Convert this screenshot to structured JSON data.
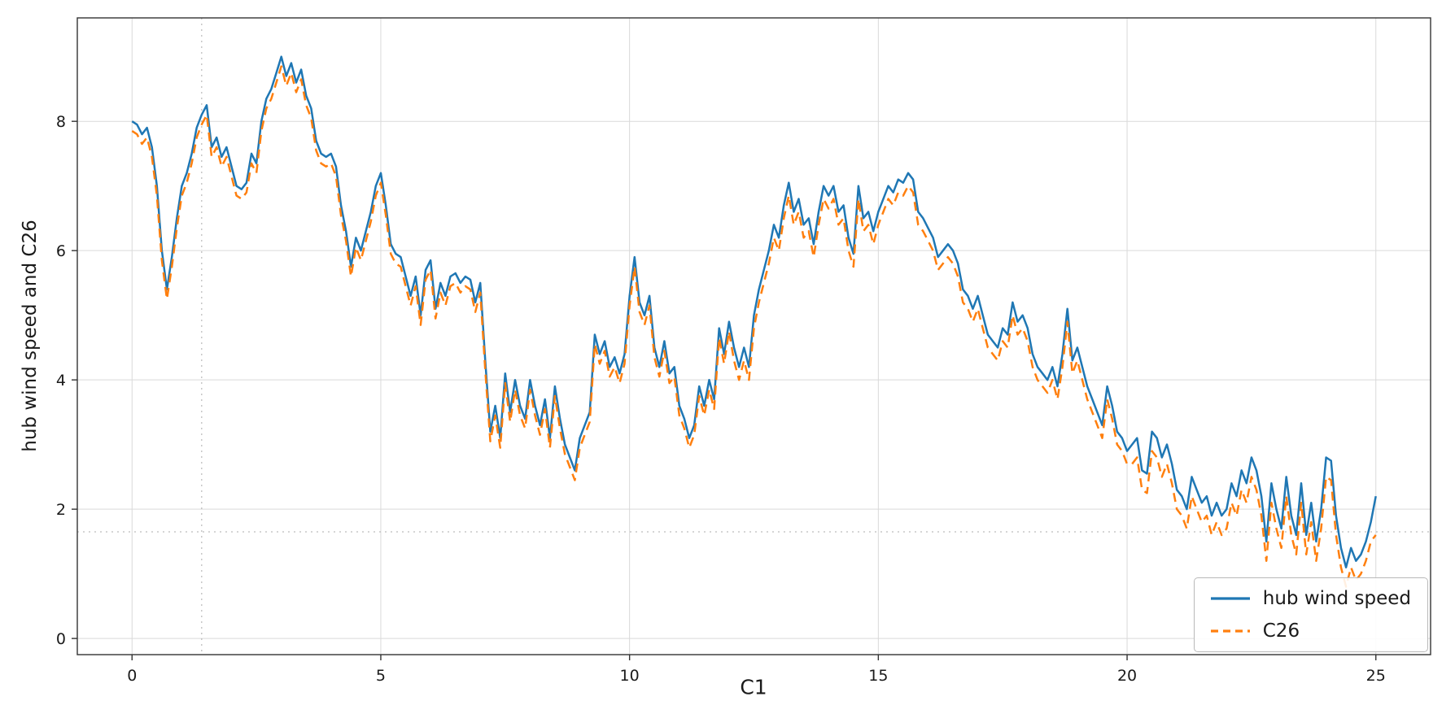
{
  "chart_data": {
    "type": "line",
    "title": "",
    "xlabel": "C1",
    "ylabel": "hub wind speed and C26",
    "xlim": [
      -1.1,
      26.1
    ],
    "ylim": [
      -0.25,
      9.6
    ],
    "x_ticks": [
      0,
      5,
      10,
      15,
      20,
      25
    ],
    "y_ticks": [
      0,
      2,
      4,
      6,
      8
    ],
    "grid": true,
    "legend_position": "lower right",
    "crosshair": {
      "x": 1.4,
      "y": 1.65
    },
    "x": {
      "start": 0,
      "step": 0.1
    },
    "series": [
      {
        "name": "hub wind speed",
        "color": "#1f77b4",
        "style": "solid",
        "values": [
          8.0,
          7.95,
          7.8,
          7.9,
          7.6,
          7.0,
          6.0,
          5.4,
          5.9,
          6.5,
          7.0,
          7.2,
          7.5,
          7.9,
          8.1,
          8.25,
          7.6,
          7.75,
          7.45,
          7.6,
          7.3,
          7.0,
          6.95,
          7.05,
          7.5,
          7.35,
          8.0,
          8.35,
          8.5,
          8.75,
          9.0,
          8.7,
          8.9,
          8.6,
          8.8,
          8.4,
          8.2,
          7.7,
          7.5,
          7.45,
          7.5,
          7.3,
          6.7,
          6.3,
          5.75,
          6.2,
          6.0,
          6.3,
          6.6,
          7.0,
          7.2,
          6.7,
          6.1,
          5.95,
          5.9,
          5.6,
          5.3,
          5.6,
          5.0,
          5.7,
          5.85,
          5.1,
          5.5,
          5.3,
          5.6,
          5.65,
          5.5,
          5.6,
          5.55,
          5.2,
          5.5,
          4.3,
          3.2,
          3.6,
          3.1,
          4.1,
          3.5,
          4.0,
          3.6,
          3.4,
          4.0,
          3.6,
          3.3,
          3.7,
          3.1,
          3.9,
          3.4,
          3.0,
          2.8,
          2.6,
          3.1,
          3.3,
          3.5,
          4.7,
          4.4,
          4.6,
          4.2,
          4.35,
          4.1,
          4.4,
          5.3,
          5.9,
          5.2,
          5.0,
          5.3,
          4.5,
          4.2,
          4.6,
          4.1,
          4.2,
          3.6,
          3.4,
          3.1,
          3.3,
          3.9,
          3.6,
          4.0,
          3.7,
          4.8,
          4.4,
          4.9,
          4.5,
          4.2,
          4.5,
          4.2,
          5.0,
          5.4,
          5.7,
          6.0,
          6.4,
          6.2,
          6.7,
          7.05,
          6.6,
          6.8,
          6.4,
          6.5,
          6.1,
          6.6,
          7.0,
          6.85,
          7.0,
          6.6,
          6.7,
          6.2,
          5.95,
          7.0,
          6.5,
          6.6,
          6.3,
          6.6,
          6.8,
          7.0,
          6.9,
          7.1,
          7.05,
          7.2,
          7.1,
          6.6,
          6.5,
          6.35,
          6.2,
          5.9,
          6.0,
          6.1,
          6.0,
          5.8,
          5.4,
          5.3,
          5.1,
          5.3,
          5.0,
          4.7,
          4.6,
          4.5,
          4.8,
          4.7,
          5.2,
          4.9,
          5.0,
          4.8,
          4.4,
          4.2,
          4.1,
          4.0,
          4.2,
          3.9,
          4.4,
          5.1,
          4.3,
          4.5,
          4.2,
          3.9,
          3.7,
          3.5,
          3.3,
          3.9,
          3.6,
          3.2,
          3.1,
          2.9,
          3.0,
          3.1,
          2.6,
          2.55,
          3.2,
          3.1,
          2.8,
          3.0,
          2.7,
          2.3,
          2.2,
          2.0,
          2.5,
          2.3,
          2.1,
          2.2,
          1.9,
          2.1,
          1.9,
          2.0,
          2.4,
          2.2,
          2.6,
          2.4,
          2.8,
          2.6,
          2.2,
          1.5,
          2.4,
          2.0,
          1.7,
          2.5,
          1.9,
          1.6,
          2.4,
          1.6,
          2.1,
          1.5,
          2.0,
          2.8,
          2.75,
          1.9,
          1.4,
          1.1,
          1.4,
          1.2,
          1.3,
          1.5,
          1.8,
          2.2
        ]
      },
      {
        "name": "C26",
        "color": "#ff7f0e",
        "style": "dashed",
        "values": [
          7.85,
          7.8,
          7.65,
          7.75,
          7.45,
          6.85,
          5.85,
          5.25,
          5.75,
          6.35,
          6.85,
          7.05,
          7.35,
          7.75,
          7.95,
          8.1,
          7.45,
          7.6,
          7.3,
          7.45,
          7.15,
          6.85,
          6.8,
          6.9,
          7.35,
          7.2,
          7.85,
          8.2,
          8.35,
          8.6,
          8.85,
          8.55,
          8.75,
          8.45,
          8.65,
          8.25,
          8.05,
          7.55,
          7.35,
          7.3,
          7.35,
          7.15,
          6.55,
          6.15,
          5.6,
          6.05,
          5.85,
          6.15,
          6.45,
          6.85,
          7.05,
          6.55,
          5.95,
          5.8,
          5.75,
          5.45,
          5.15,
          5.45,
          4.85,
          5.55,
          5.7,
          4.95,
          5.35,
          5.15,
          5.45,
          5.5,
          5.35,
          5.45,
          5.4,
          5.05,
          5.35,
          4.15,
          3.05,
          3.45,
          2.95,
          3.95,
          3.35,
          3.85,
          3.45,
          3.25,
          3.85,
          3.45,
          3.15,
          3.55,
          2.95,
          3.75,
          3.25,
          2.85,
          2.65,
          2.45,
          2.95,
          3.15,
          3.35,
          4.55,
          4.25,
          4.45,
          4.05,
          4.2,
          3.95,
          4.25,
          5.15,
          5.75,
          5.05,
          4.85,
          5.15,
          4.35,
          4.05,
          4.45,
          3.95,
          4.05,
          3.45,
          3.25,
          2.95,
          3.15,
          3.75,
          3.45,
          3.85,
          3.55,
          4.65,
          4.25,
          4.75,
          4.3,
          4.0,
          4.3,
          4.0,
          4.8,
          5.2,
          5.5,
          5.8,
          6.2,
          6.0,
          6.5,
          6.85,
          6.4,
          6.6,
          6.2,
          6.3,
          5.9,
          6.4,
          6.8,
          6.65,
          6.8,
          6.4,
          6.5,
          6.0,
          5.75,
          6.8,
          6.3,
          6.4,
          6.1,
          6.4,
          6.6,
          6.8,
          6.7,
          6.9,
          6.85,
          7.0,
          6.9,
          6.4,
          6.3,
          6.15,
          6.0,
          5.7,
          5.8,
          5.9,
          5.8,
          5.6,
          5.2,
          5.1,
          4.9,
          5.1,
          4.8,
          4.5,
          4.4,
          4.3,
          4.6,
          4.5,
          5.0,
          4.7,
          4.8,
          4.6,
          4.2,
          4.0,
          3.9,
          3.8,
          4.0,
          3.7,
          4.2,
          4.9,
          4.1,
          4.3,
          4.0,
          3.7,
          3.5,
          3.3,
          3.1,
          3.7,
          3.4,
          3.0,
          2.9,
          2.7,
          2.7,
          2.8,
          2.3,
          2.25,
          2.9,
          2.8,
          2.5,
          2.7,
          2.4,
          2.0,
          1.9,
          1.7,
          2.2,
          2.0,
          1.8,
          1.9,
          1.6,
          1.8,
          1.6,
          1.7,
          2.1,
          1.9,
          2.3,
          2.1,
          2.5,
          2.3,
          1.9,
          1.2,
          2.1,
          1.7,
          1.4,
          2.2,
          1.6,
          1.3,
          2.1,
          1.3,
          1.8,
          1.2,
          1.7,
          2.5,
          2.45,
          1.6,
          1.1,
          0.8,
          1.1,
          0.9,
          1.0,
          1.2,
          1.5,
          1.6
        ]
      }
    ]
  }
}
